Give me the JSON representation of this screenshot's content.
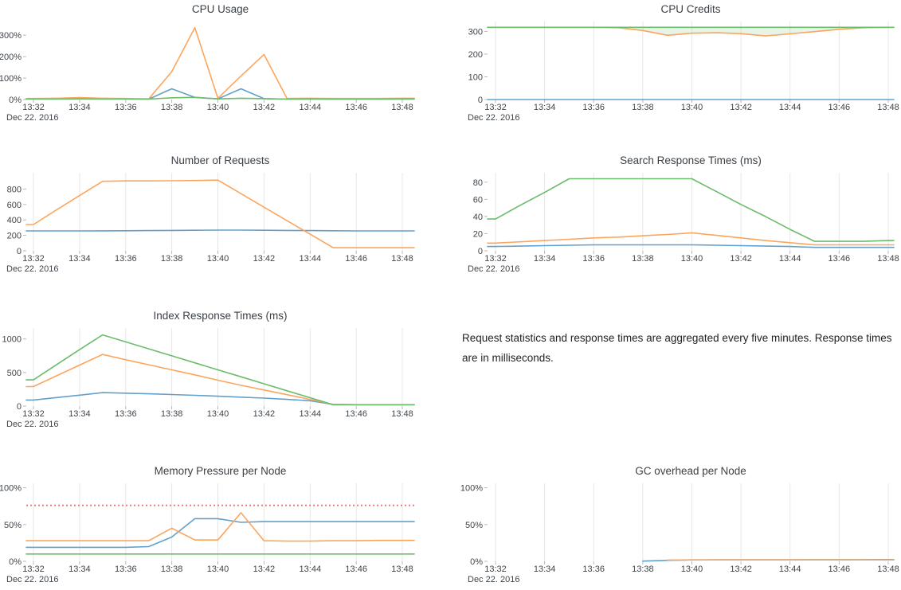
{
  "note": {
    "text": "Request statistics and response times are aggregated every five minutes. Response times are in milliseconds."
  },
  "palette": {
    "blue": "#62a0cb",
    "orange": "#fca55d",
    "green": "#6bbc6b",
    "threshold_red": "#e57e7e",
    "grid": "#e7e7e7",
    "tick_text": "#3f454b",
    "title_text": "#3b4147"
  },
  "chart_data": [
    {
      "type": "line",
      "title": "CPU Usage",
      "grid": false,
      "legend": "none",
      "x_ticks": [
        "13:32",
        "13:34",
        "13:36",
        "13:38",
        "13:40",
        "13:42",
        "13:44",
        "13:46",
        "13:48"
      ],
      "x_date": "Dec 22. 2016",
      "x_start": "13:32",
      "x_step_minutes": 1,
      "y_ticks": [
        0,
        100,
        200,
        300
      ],
      "y_tick_labels": [
        "0%",
        "100%",
        "200%",
        "300%"
      ],
      "y_max": 360,
      "series": [
        {
          "color": "#62a0cb",
          "values": [
            3,
            3,
            3,
            3,
            3,
            2,
            50,
            10,
            3,
            50,
            4,
            2,
            2,
            2,
            2,
            2,
            2
          ]
        },
        {
          "color": "#fca55d",
          "values": [
            5,
            6,
            9,
            6,
            5,
            3,
            130,
            335,
            6,
            110,
            210,
            5,
            6,
            5,
            5,
            5,
            6
          ]
        },
        {
          "color": "#6bbc6b",
          "values": [
            2,
            2,
            3,
            2,
            2,
            2,
            8,
            10,
            3,
            6,
            4,
            2,
            3,
            2,
            2,
            2,
            3
          ]
        }
      ]
    },
    {
      "type": "line",
      "title": "CPU Credits",
      "grid": true,
      "legend": "none",
      "x_ticks": [
        "13:32",
        "13:34",
        "13:36",
        "13:38",
        "13:40",
        "13:42",
        "13:44",
        "13:46",
        "13:48"
      ],
      "x_date": "Dec 22. 2016",
      "x_start": "13:32",
      "x_step_minutes": 1,
      "y_ticks": [
        0,
        100,
        200,
        300
      ],
      "y_tick_labels": [
        "0",
        "100",
        "200",
        "300"
      ],
      "y_max": 340,
      "fill_between": {
        "series": [
          2,
          1
        ],
        "color": "rgba(107,188,107,0.16)"
      },
      "series": [
        {
          "color": "#62a0cb",
          "values": [
            0,
            0,
            0,
            0,
            0,
            0,
            0,
            0,
            0,
            0,
            0,
            0,
            0,
            0,
            0,
            0,
            0
          ]
        },
        {
          "color": "#fca55d",
          "values": [
            318,
            318,
            318,
            318,
            318,
            316,
            304,
            283,
            292,
            294,
            290,
            280,
            289,
            299,
            309,
            316,
            318
          ]
        },
        {
          "color": "#6bbc6b",
          "values": [
            318,
            318,
            318,
            318,
            318,
            318,
            318,
            318,
            318,
            318,
            318,
            318,
            318,
            318,
            318,
            318,
            318
          ]
        }
      ]
    },
    {
      "type": "line",
      "title": "Number of Requests",
      "grid": true,
      "legend": "none",
      "x_ticks": [
        "13:32",
        "13:34",
        "13:36",
        "13:38",
        "13:40",
        "13:42",
        "13:44",
        "13:46",
        "13:48"
      ],
      "x_date": "Dec 22. 2016",
      "x_start": "13:32",
      "x_step_minutes": 1,
      "y_ticks": [
        0,
        200,
        400,
        600,
        800
      ],
      "y_tick_labels": [
        "0",
        "200",
        "400",
        "600",
        "800"
      ],
      "y_max": 1000,
      "series": [
        {
          "color": "#62a0cb",
          "values": [
            258,
            258,
            258,
            259,
            260,
            262,
            264,
            266,
            268,
            268,
            266,
            264,
            262,
            260,
            258,
            258,
            258
          ]
        },
        {
          "color": "#fca55d",
          "values": [
            340,
            530,
            715,
            900,
            905,
            905,
            907,
            910,
            915,
            740,
            565,
            390,
            215,
            40,
            40,
            40,
            40
          ]
        }
      ]
    },
    {
      "type": "line",
      "title": "Search Response Times (ms)",
      "grid": true,
      "legend": "none",
      "x_ticks": [
        "13:32",
        "13:34",
        "13:36",
        "13:38",
        "13:40",
        "13:42",
        "13:44",
        "13:46",
        "13:48"
      ],
      "x_date": "Dec 22. 2016",
      "x_start": "13:32",
      "x_step_minutes": 1,
      "y_ticks": [
        0,
        20,
        40,
        60,
        80
      ],
      "y_tick_labels": [
        "0",
        "20",
        "40",
        "60",
        "80"
      ],
      "y_max": 90,
      "series": [
        {
          "color": "#62a0cb",
          "values": [
            5,
            5.5,
            6,
            6.5,
            7,
            7,
            7,
            7,
            7,
            6.5,
            6,
            5.5,
            5,
            4,
            4,
            4,
            4
          ]
        },
        {
          "color": "#fca55d",
          "values": [
            9,
            10.5,
            12,
            13.5,
            15,
            16,
            17.5,
            19,
            21,
            18,
            15,
            12,
            9.5,
            7,
            7,
            7,
            7
          ]
        },
        {
          "color": "#6bbc6b",
          "values": [
            37,
            53,
            68,
            84,
            84,
            84,
            84,
            84,
            84,
            69,
            54,
            40,
            25,
            11,
            11,
            11,
            12
          ]
        }
      ]
    },
    {
      "type": "line",
      "title": "Index Response Times (ms)",
      "grid": true,
      "legend": "none",
      "x_ticks": [
        "13:32",
        "13:34",
        "13:36",
        "13:38",
        "13:40",
        "13:42",
        "13:44",
        "13:46",
        "13:48"
      ],
      "x_date": "Dec 22. 2016",
      "x_start": "13:32",
      "x_step_minutes": 1,
      "y_ticks": [
        0,
        500,
        1000
      ],
      "y_tick_labels": [
        "0",
        "500",
        "1000"
      ],
      "y_max": 1150,
      "series": [
        {
          "color": "#62a0cb",
          "values": [
            90,
            127,
            163,
            200,
            192,
            183,
            172,
            160,
            147,
            133,
            118,
            100,
            80,
            25,
            20,
            20,
            20
          ]
        },
        {
          "color": "#fca55d",
          "values": [
            290,
            450,
            610,
            770,
            690,
            615,
            540,
            465,
            385,
            310,
            240,
            170,
            100,
            25,
            20,
            20,
            20
          ]
        },
        {
          "color": "#6bbc6b",
          "values": [
            390,
            615,
            840,
            1060,
            956,
            852,
            748,
            644,
            540,
            436,
            332,
            228,
            124,
            20,
            20,
            20,
            20
          ]
        }
      ]
    },
    {
      "type": "line",
      "title": "Memory Pressure per Node",
      "grid": true,
      "legend": "none",
      "x_ticks": [
        "13:32",
        "13:34",
        "13:36",
        "13:38",
        "13:40",
        "13:42",
        "13:44",
        "13:46",
        "13:48"
      ],
      "x_date": "Dec 22. 2016",
      "x_start": "13:32",
      "x_step_minutes": 1,
      "y_ticks": [
        0,
        50,
        100
      ],
      "y_tick_labels": [
        "0%",
        "50%",
        "100%"
      ],
      "y_max": 105,
      "threshold": {
        "value": 76,
        "color": "#e57e7e",
        "style": "dotted"
      },
      "series": [
        {
          "color": "#62a0cb",
          "values": [
            19,
            19,
            19,
            19,
            19,
            20,
            33,
            58,
            58,
            53,
            54,
            54,
            54,
            54,
            54,
            54,
            54
          ]
        },
        {
          "color": "#fca55d",
          "values": [
            28,
            28,
            28,
            28,
            28,
            28,
            45,
            29,
            29,
            66,
            28,
            27.5,
            27.5,
            28,
            28,
            28.5,
            28.5
          ]
        },
        {
          "color": "#6bbc6b",
          "values": [
            10,
            10,
            10,
            10,
            10,
            10,
            10,
            10,
            10,
            10,
            10,
            10,
            10,
            10,
            10,
            10,
            10
          ]
        }
      ]
    },
    {
      "type": "line",
      "title": "GC overhead per Node",
      "grid": true,
      "legend": "none",
      "x_ticks": [
        "13:32",
        "13:34",
        "13:36",
        "13:38",
        "13:40",
        "13:42",
        "13:44",
        "13:46",
        "13:48"
      ],
      "x_date": "Dec 22. 2016",
      "x_start": "13:32",
      "x_step_minutes": 1,
      "y_ticks": [
        0,
        50,
        100
      ],
      "y_tick_labels": [
        "0%",
        "50%",
        "100%"
      ],
      "y_max": 105,
      "series": [
        {
          "color": "#62a0cb",
          "values": [
            null,
            null,
            null,
            null,
            null,
            null,
            0.3,
            1.3,
            1.9,
            2.1,
            2.2,
            2.2,
            2.2,
            2.3,
            2.3,
            2.3,
            2.4
          ]
        },
        {
          "color": "#fca55d",
          "values": [
            null,
            null,
            null,
            null,
            null,
            null,
            null,
            1.7,
            1.9,
            2,
            2,
            2,
            2,
            2,
            2,
            2,
            1.9
          ]
        }
      ]
    }
  ]
}
